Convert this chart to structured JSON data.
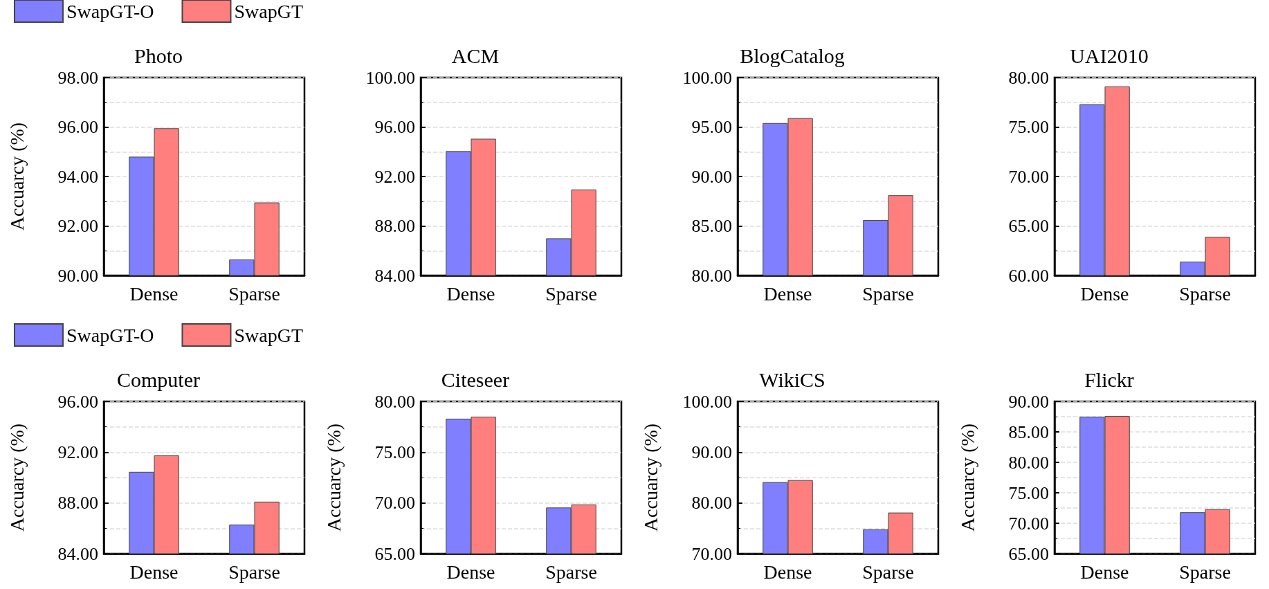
{
  "chart_data": [
    {
      "type": "bar",
      "title": "Photo",
      "ylabel": "Accuarcy (%)",
      "categories": [
        "Dense",
        "Sparse"
      ],
      "ylim": [
        90,
        98
      ],
      "yticks": [
        {
          "value": 90,
          "label": "90.00"
        },
        {
          "value": 92,
          "label": "92.00"
        },
        {
          "value": 94,
          "label": "94.00"
        },
        {
          "value": 96,
          "label": "96.00"
        },
        {
          "value": 98,
          "label": "98.00"
        }
      ],
      "grid": "y",
      "legend": "top",
      "series": [
        {
          "name": "SwapGT-O",
          "color": "#7f7fff",
          "values": [
            94.8,
            90.65
          ]
        },
        {
          "name": "SwapGT",
          "color": "#ff7f7f",
          "values": [
            95.95,
            92.95
          ]
        }
      ]
    },
    {
      "type": "bar",
      "title": "ACM",
      "categories": [
        "Dense",
        "Sparse"
      ],
      "ylim": [
        84,
        100
      ],
      "yticks": [
        {
          "value": 84,
          "label": "84.00"
        },
        {
          "value": 88,
          "label": "88.00"
        },
        {
          "value": 92,
          "label": "92.00"
        },
        {
          "value": 96,
          "label": "96.00"
        },
        {
          "value": 100,
          "label": "100.00"
        }
      ],
      "grid": "y",
      "series": [
        {
          "color": "#7f7fff",
          "values": [
            94.05,
            87.0
          ]
        },
        {
          "color": "#ff7f7f",
          "values": [
            95.05,
            90.95
          ]
        }
      ]
    },
    {
      "type": "bar",
      "title": "BlogCatalog",
      "categories": [
        "Dense",
        "Sparse"
      ],
      "ylim": [
        80,
        100
      ],
      "yticks": [
        {
          "value": 80,
          "label": "80.00"
        },
        {
          "value": 85,
          "label": "85.00"
        },
        {
          "value": 90,
          "label": "90.00"
        },
        {
          "value": 95,
          "label": "95.00"
        },
        {
          "value": 100,
          "label": "100.00"
        }
      ],
      "grid": "y",
      "series": [
        {
          "color": "#7f7fff",
          "values": [
            95.4,
            85.6
          ]
        },
        {
          "color": "#ff7f7f",
          "values": [
            95.9,
            88.1
          ]
        }
      ]
    },
    {
      "type": "bar",
      "title": "UAI2010",
      "categories": [
        "Dense",
        "Sparse"
      ],
      "ylim": [
        60,
        80
      ],
      "yticks": [
        {
          "value": 60,
          "label": "60.00"
        },
        {
          "value": 65,
          "label": "65.00"
        },
        {
          "value": 70,
          "label": "70.00"
        },
        {
          "value": 75,
          "label": "75.00"
        },
        {
          "value": 80,
          "label": "80.00"
        }
      ],
      "grid": "y",
      "series": [
        {
          "color": "#7f7fff",
          "values": [
            77.3,
            61.4
          ]
        },
        {
          "color": "#ff7f7f",
          "values": [
            79.1,
            63.9
          ]
        }
      ]
    },
    {
      "type": "bar",
      "title": "Computer",
      "ylabel": "Accuarcy (%)",
      "categories": [
        "Dense",
        "Sparse"
      ],
      "ylim": [
        84,
        96
      ],
      "yticks": [
        {
          "value": 84,
          "label": "84.00"
        },
        {
          "value": 88,
          "label": "88.00"
        },
        {
          "value": 92,
          "label": "92.00"
        },
        {
          "value": 96,
          "label": "96.00"
        }
      ],
      "grid": "y",
      "legend": "top",
      "series": [
        {
          "name": "SwapGT-O",
          "color": "#7f7fff",
          "values": [
            90.45,
            86.3
          ]
        },
        {
          "name": "SwapGT",
          "color": "#ff7f7f",
          "values": [
            91.75,
            88.1
          ]
        }
      ]
    },
    {
      "type": "bar",
      "title": "Citeseer",
      "ylabel": "Accuarcy (%)",
      "categories": [
        "Dense",
        "Sparse"
      ],
      "ylim": [
        65,
        80
      ],
      "yticks": [
        {
          "value": 65,
          "label": "65.00"
        },
        {
          "value": 70,
          "label": "70.00"
        },
        {
          "value": 75,
          "label": "75.00"
        },
        {
          "value": 80,
          "label": "80.00"
        }
      ],
      "grid": "y",
      "series": [
        {
          "color": "#7f7fff",
          "values": [
            78.3,
            69.55
          ]
        },
        {
          "color": "#ff7f7f",
          "values": [
            78.5,
            69.85
          ]
        }
      ]
    },
    {
      "type": "bar",
      "title": "WikiCS",
      "ylabel": "Accuarcy (%)",
      "categories": [
        "Dense",
        "Sparse"
      ],
      "ylim": [
        70,
        100
      ],
      "yticks": [
        {
          "value": 70,
          "label": "70.00"
        },
        {
          "value": 80,
          "label": "80.00"
        },
        {
          "value": 90,
          "label": "90.00"
        },
        {
          "value": 100,
          "label": "100.00"
        }
      ],
      "grid": "y",
      "series": [
        {
          "color": "#7f7fff",
          "values": [
            84.1,
            74.8
          ]
        },
        {
          "color": "#ff7f7f",
          "values": [
            84.5,
            78.1
          ]
        }
      ]
    },
    {
      "type": "bar",
      "title": "Flickr",
      "ylabel": "Accuarcy (%)",
      "categories": [
        "Dense",
        "Sparse"
      ],
      "ylim": [
        65,
        90
      ],
      "yticks": [
        {
          "value": 65,
          "label": "65.00"
        },
        {
          "value": 70,
          "label": "70.00"
        },
        {
          "value": 75,
          "label": "75.00"
        },
        {
          "value": 80,
          "label": "80.00"
        },
        {
          "value": 85,
          "label": "85.00"
        },
        {
          "value": 90,
          "label": "90.00"
        }
      ],
      "grid": "y",
      "series": [
        {
          "color": "#7f7fff",
          "values": [
            87.5,
            71.8
          ]
        },
        {
          "color": "#ff7f7f",
          "values": [
            87.6,
            72.3
          ]
        }
      ]
    }
  ]
}
